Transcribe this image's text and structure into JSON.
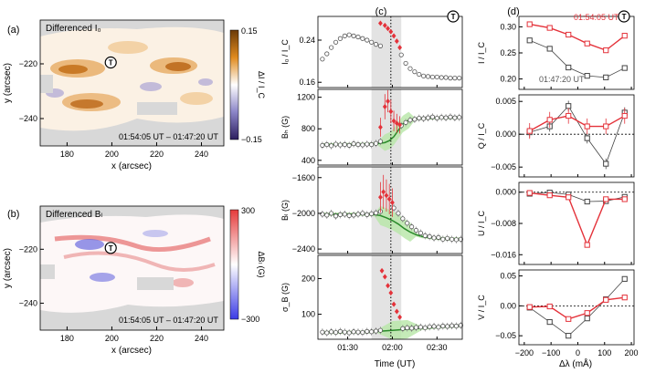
{
  "colors": {
    "red": "#e4323a",
    "gray": "#555555",
    "green": "#2a8a2a",
    "green_fill": "#b7e6a6",
    "shade": "#e3e3e3",
    "orange": "#c87410",
    "purple": "#3b2b7a"
  },
  "chart_data": [
    {
      "id": "a",
      "type": "heatmap",
      "panel_label": "(a)",
      "title": "Differenced I₀",
      "xlabel": "x (arcsec)",
      "ylabel": "y (arcsec)",
      "xticks": [
        "180",
        "200",
        "220",
        "240"
      ],
      "yticks": [
        "−220",
        "−240"
      ],
      "xlim": [
        168,
        250
      ],
      "ylim": [
        -250,
        -204
      ],
      "time_label": "01:54:05 UT – 01:47:20 UT",
      "marker": "T",
      "colorbar": {
        "label": "ΔI / I_C",
        "max": "0.15",
        "min": "−0.15",
        "max_value": 0.15,
        "min_value": -0.15
      }
    },
    {
      "id": "b",
      "type": "heatmap",
      "panel_label": "(b)",
      "title": "Differenced Bₗ",
      "xlabel": "x (arcsec)",
      "ylabel": "y (arcsec)",
      "xticks": [
        "180",
        "200",
        "220",
        "240"
      ],
      "yticks": [
        "−220",
        "−240"
      ],
      "xlim": [
        168,
        250
      ],
      "ylim": [
        -250,
        -204
      ],
      "time_label": "01:54:05 UT – 01:47:20 UT",
      "marker": "T",
      "colorbar": {
        "label": "ΔBₗ (G)",
        "max": "300",
        "min": "−300",
        "max_value": 300,
        "min_value": -300
      }
    },
    {
      "id": "c",
      "type": "line",
      "panel_label": "(c)",
      "xlabel": "Time (UT)",
      "xticks": [
        {
          "t": 90,
          "label": "01:30"
        },
        {
          "t": 120,
          "label": "02:00"
        },
        {
          "t": 150,
          "label": "02:30"
        }
      ],
      "xlim": [
        70,
        167
      ],
      "shaded_interval": [
        106,
        126
      ],
      "vertical_line": 119,
      "marker": "T",
      "subplots": [
        {
          "ylabel": "I₀ / I_C",
          "ylim": [
            0.15,
            0.285
          ],
          "yticks": [
            {
              "v": 0.16,
              "label": "0.16"
            },
            {
              "v": 0.24,
              "label": "0.24"
            }
          ],
          "gray": {
            "t": [
              73,
              76,
              79,
              82,
              85,
              88,
              91,
              94,
              97,
              100,
              103,
              106,
              109,
              112
            ],
            "v": [
              0.204,
              0.214,
              0.226,
              0.236,
              0.243,
              0.248,
              0.25,
              0.248,
              0.246,
              0.243,
              0.24,
              0.236,
              0.232,
              0.229
            ]
          },
          "red": {
            "t": [
              112,
              115,
              117,
              119,
              121,
              123,
              125
            ],
            "v": [
              0.272,
              0.268,
              0.262,
              0.256,
              0.248,
              0.238,
              0.226
            ]
          },
          "gray2": {
            "t": [
              126,
              129,
              132,
              135,
              138,
              141,
              144,
              147,
              150,
              153,
              156,
              159,
              162,
              165
            ],
            "v": [
              0.212,
              0.196,
              0.186,
              0.18,
              0.175,
              0.172,
              0.171,
              0.17,
              0.17,
              0.169,
              0.169,
              0.168,
              0.168,
              0.168
            ]
          }
        },
        {
          "ylabel": "Bₕ (G)",
          "ylim": [
            340,
            1300
          ],
          "yticks": [
            {
              "v": 400,
              "label": "400"
            },
            {
              "v": 800,
              "label": "800"
            },
            {
              "v": 1200,
              "label": "1200"
            }
          ],
          "gray": {
            "t": [
              73,
              76,
              79,
              82,
              85,
              88,
              91,
              94,
              97,
              100,
              103,
              106,
              109,
              112
            ],
            "v": [
              590,
              600,
              585,
              605,
              595,
              600,
              590,
              610,
              600,
              595,
              605,
              600,
              615,
              640
            ]
          },
          "red": {
            "t": [
              112,
              115,
              117,
              119,
              121,
              123,
              125
            ],
            "v": [
              820,
              1080,
              1150,
              1020,
              900,
              870,
              850
            ]
          },
          "red_err": [
            120,
            160,
            140,
            150,
            130,
            120,
            110
          ],
          "gray2": {
            "t": [
              126,
              129,
              132,
              135,
              138,
              141,
              144,
              147,
              150,
              153,
              156,
              159,
              162,
              165
            ],
            "v": [
              840,
              880,
              910,
              920,
              935,
              930,
              940,
              950,
              935,
              945,
              940,
              950,
              940,
              945
            ]
          },
          "green": {
            "t": [
              73,
              100,
              110,
              115,
              118,
              121,
              124,
              127,
              131,
              135,
              140,
              150,
              165
            ],
            "v": [
              600,
              605,
              612,
              625,
              650,
              700,
              780,
              860,
              910,
              925,
              932,
              938,
              942
            ]
          }
        },
        {
          "ylabel": "Bₗ (G)",
          "ylim": [
            -2450,
            -1480
          ],
          "yticks": [
            {
              "v": -1600,
              "label": "−1600"
            },
            {
              "v": -2000,
              "label": "−2000"
            },
            {
              "v": -2400,
              "label": "−2400"
            }
          ],
          "gray": {
            "t": [
              73,
              76,
              79,
              82,
              85,
              88,
              91,
              94,
              97,
              100,
              103,
              106,
              109,
              112
            ],
            "v": [
              -2010,
              -2020,
              -2000,
              -2030,
              -2015,
              -2010,
              -2025,
              -2020,
              -2010,
              -2000,
              -2015,
              -2005,
              -1995,
              -1980
            ]
          },
          "red": {
            "t": [
              112,
              114,
              116,
              118,
              120
            ],
            "v": [
              -1820,
              -1760,
              -1800,
              -1840,
              -1880
            ]
          },
          "red_err": [
            170,
            190,
            180,
            170,
            160
          ],
          "gray2": {
            "t": [
              121,
              124,
              127,
              130,
              133,
              136,
              139,
              142,
              145,
              148,
              151,
              154,
              157,
              160,
              163,
              166
            ],
            "v": [
              -1940,
              -2000,
              -2060,
              -2110,
              -2150,
              -2190,
              -2220,
              -2250,
              -2260,
              -2275,
              -2270,
              -2290,
              -2280,
              -2290,
              -2295,
              -2290
            ]
          },
          "green": {
            "t": [
              73,
              100,
              108,
              112,
              116,
              120,
              124,
              128,
              132,
              136,
              140,
              150,
              166
            ],
            "v": [
              -2010,
              -2010,
              -2015,
              -2025,
              -2050,
              -2080,
              -2120,
              -2170,
              -2210,
              -2240,
              -2260,
              -2280,
              -2290
            ]
          }
        },
        {
          "ylabel": "σ_B (G)",
          "ylim": [
            30,
            265
          ],
          "yticks": [
            {
              "v": 100,
              "label": "100"
            },
            {
              "v": 200,
              "label": "200"
            }
          ],
          "gray": {
            "t": [
              73,
              76,
              79,
              82,
              85,
              88,
              91,
              94,
              97,
              100,
              103,
              106,
              109,
              112
            ],
            "v": [
              50,
              48,
              51,
              49,
              52,
              50,
              48,
              51,
              50,
              49,
              52,
              51,
              53,
              55
            ]
          },
          "red": {
            "t": [
              113,
              115,
              117,
              119,
              121,
              123,
              125
            ],
            "v": [
              222,
              205,
              180,
              160,
              128,
              108,
              92
            ]
          },
          "gray2": {
            "t": [
              127,
              130,
              133,
              136,
              139,
              142,
              145,
              148,
              151,
              154,
              157,
              160,
              163,
              166
            ],
            "v": [
              60,
              62,
              61,
              63,
              64,
              62,
              65,
              66,
              64,
              67,
              66,
              68,
              67,
              69
            ]
          },
          "green": {
            "t": [
              73,
              100,
              110,
              120,
              130,
              140,
              150,
              166
            ],
            "v": [
              49,
              50,
              52,
              55,
              58,
              61,
              64,
              68
            ]
          }
        }
      ]
    },
    {
      "id": "d",
      "type": "line",
      "panel_label": "(d)",
      "xlabel": "Δλ (mÅ)",
      "xticks": [
        -200,
        -100,
        0,
        100,
        200
      ],
      "xlim": [
        -220,
        210
      ],
      "marker": "T",
      "series_names": [
        "01:54:05 UT",
        "01:47:20 UT"
      ],
      "x": [
        -180,
        -105,
        -35,
        35,
        105,
        175
      ],
      "subplots": [
        {
          "ylabel": "I / I_C",
          "ylim": [
            0.18,
            0.32
          ],
          "yticks": [
            {
              "v": 0.2,
              "label": "0.20"
            },
            {
              "v": 0.25,
              "label": "0.25"
            },
            {
              "v": 0.3,
              "label": "0.30"
            }
          ],
          "red": [
            0.305,
            0.298,
            0.285,
            0.268,
            0.255,
            0.283
          ],
          "gray": [
            0.274,
            0.258,
            0.222,
            0.206,
            0.203,
            0.221
          ]
        },
        {
          "ylabel": "Q / I_C",
          "ylim": [
            -0.0065,
            0.006
          ],
          "yticks": [
            {
              "v": 0.005,
              "label": "0.005"
            },
            {
              "v": 0.0,
              "label": "0.000"
            },
            {
              "v": -0.005,
              "label": "−0.005"
            }
          ],
          "red": [
            0.0005,
            0.0022,
            0.0028,
            0.0012,
            0.0012,
            0.0028
          ],
          "red_err": [
            0.0012,
            0.0012,
            0.0012,
            0.0012,
            0.0012,
            0.0012
          ],
          "gray": [
            0.0003,
            0.0012,
            0.0043,
            -0.0006,
            -0.0045,
            0.0033
          ],
          "gray_err": [
            0.0008,
            0.0008,
            0.0008,
            0.0008,
            0.0008,
            0.0008
          ]
        },
        {
          "ylabel": "U / I_C",
          "ylim": [
            -0.0185,
            0.0025
          ],
          "yticks": [
            {
              "v": 0.0,
              "label": "0.000"
            },
            {
              "v": -0.008,
              "label": "−0.008"
            },
            {
              "v": -0.016,
              "label": "−0.016"
            }
          ],
          "red": [
            -0.0002,
            -0.0008,
            -0.0013,
            -0.0135,
            -0.0018,
            -0.0018
          ],
          "gray": [
            -0.0004,
            -0.0001,
            -0.0006,
            -0.0024,
            -0.0023,
            -0.0012
          ]
        },
        {
          "ylabel": "V / I_C",
          "ylim": [
            -0.065,
            0.06
          ],
          "yticks": [
            {
              "v": 0.05,
              "label": "0.05"
            },
            {
              "v": 0.0,
              "label": "0.00"
            },
            {
              "v": -0.05,
              "label": "−0.05"
            }
          ],
          "red": [
            -0.002,
            -0.001,
            -0.022,
            -0.012,
            0.01,
            0.014
          ],
          "gray": [
            -0.003,
            -0.027,
            -0.05,
            -0.021,
            0.011,
            0.045
          ]
        }
      ]
    }
  ]
}
